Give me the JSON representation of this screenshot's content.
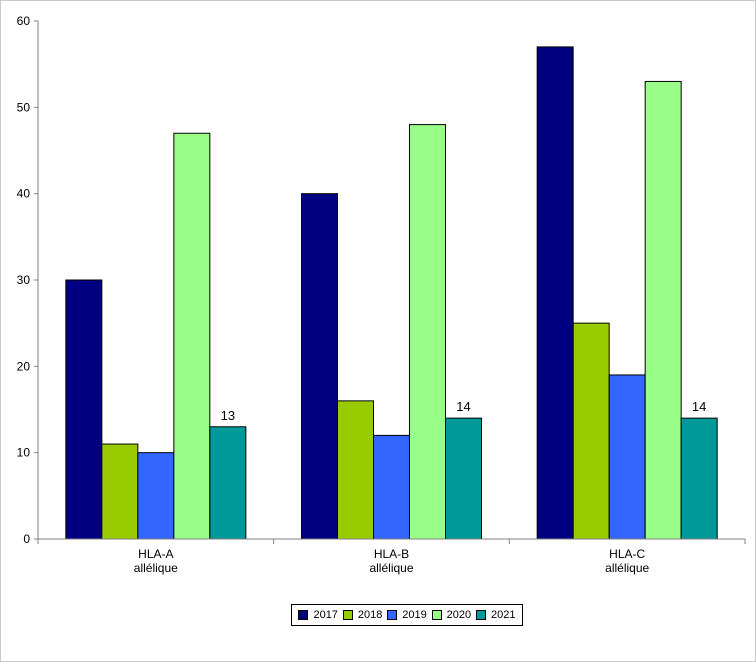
{
  "chart_data": {
    "type": "bar",
    "title": "",
    "xlabel": "",
    "ylabel": "",
    "ylim": [
      0,
      60
    ],
    "yticks": [
      0,
      10,
      20,
      30,
      40,
      50,
      60
    ],
    "grid": false,
    "legend_position": "bottom",
    "categories": [
      [
        "HLA-A",
        "allélique"
      ],
      [
        "HLA-B",
        "allélique"
      ],
      [
        "HLA-C",
        "allélique"
      ]
    ],
    "series": [
      {
        "name": "2017",
        "color": "#000080",
        "values": [
          30,
          40,
          57
        ]
      },
      {
        "name": "2018",
        "color": "#99cc00",
        "values": [
          11,
          16,
          25
        ]
      },
      {
        "name": "2019",
        "color": "#3366ff",
        "values": [
          10,
          12,
          19
        ]
      },
      {
        "name": "2020",
        "color": "#99ff88",
        "values": [
          47,
          48,
          53
        ]
      },
      {
        "name": "2021",
        "color": "#009999",
        "values": [
          13,
          14,
          14
        ]
      }
    ],
    "data_labels": [
      {
        "series": "2021",
        "category_index": 0,
        "text": "13"
      },
      {
        "series": "2021",
        "category_index": 1,
        "text": "14"
      },
      {
        "series": "2021",
        "category_index": 2,
        "text": "14"
      }
    ]
  }
}
